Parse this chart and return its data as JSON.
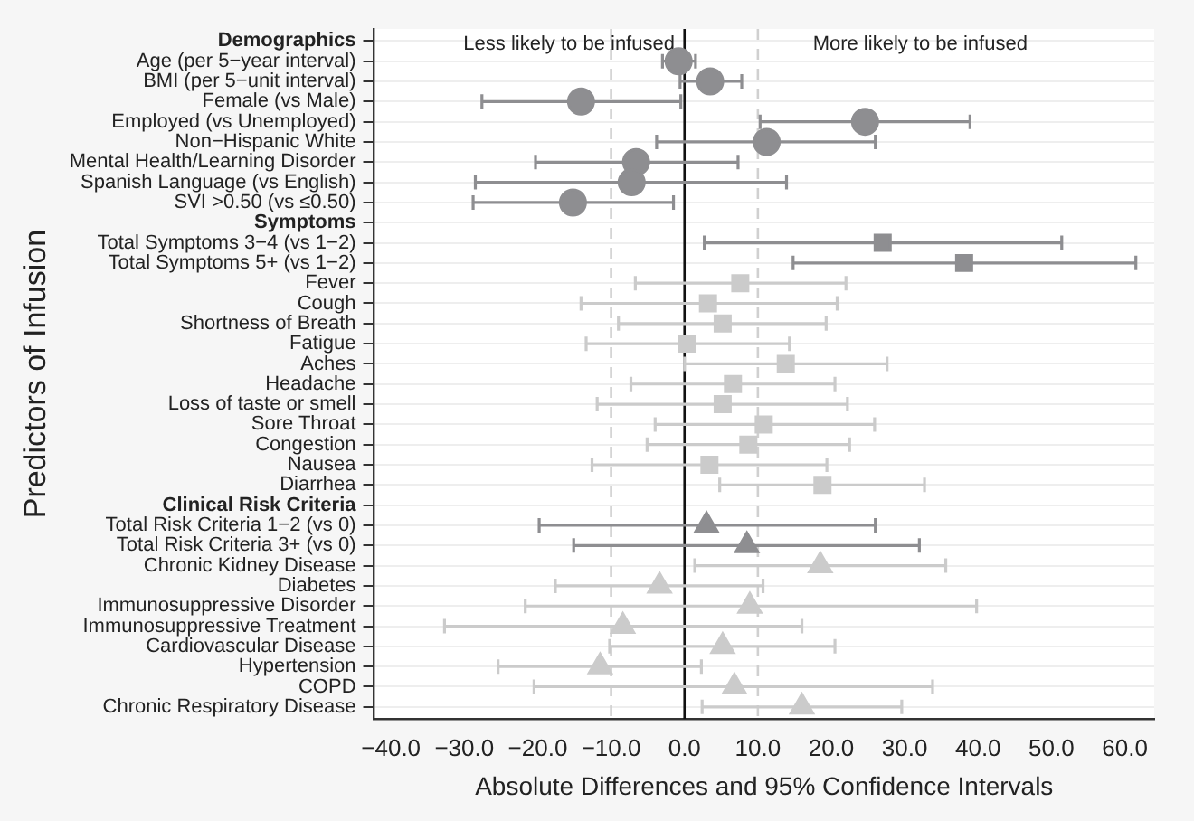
{
  "chart_data": {
    "type": "scatter",
    "orientation": "horizontal",
    "xlabel": "Absolute Differences and 95% Confidence Intervals",
    "ylabel": "Predictors of Infusion",
    "categories": [
      "Demographics",
      "Age (per 5−year interval)",
      "BMI (per 5−unit interval)",
      "Female (vs Male)",
      "Employed (vs Unemployed)",
      "Non−Hispanic White",
      "Mental Health/Learning Disorder",
      "Spanish Language (vs English)",
      "SVI >0.50 (vs ≤0.50)",
      "Symptoms",
      "Total Symptoms 3−4 (vs 1−2)",
      "Total Symptoms 5+ (vs 1−2)",
      "Fever",
      "Cough",
      "Shortness of Breath",
      "Fatigue",
      "Aches",
      "Headache",
      "Loss of taste or smell",
      "Sore Throat",
      "Congestion",
      "Nausea",
      "Diarrhea",
      "Clinical Risk Criteria",
      "Total Risk Criteria 1−2 (vs 0)",
      "Total Risk Criteria 3+ (vs 0)",
      "Chronic Kidney Disease",
      "Diabetes",
      "Immunosuppressive Disorder",
      "Immunosuppressive Treatment",
      "Cardiovascular Disease",
      "Hypertension",
      "COPD",
      "Chronic Respiratory Disease"
    ],
    "series": [
      {
        "color": "#8e8e91",
        "marker": "circle",
        "values": [
          null,
          -0.8,
          3.5,
          -14.1,
          24.6,
          11.2,
          -6.6,
          -7.2,
          -15.2,
          null,
          null,
          null,
          null,
          null,
          null,
          null,
          null,
          null,
          null,
          null,
          null,
          null,
          null,
          null,
          null,
          null,
          null,
          null,
          null,
          null,
          null,
          null,
          null,
          null
        ],
        "errors": [
          null,
          [
            -3.0,
            1.5
          ],
          [
            -0.6,
            7.8
          ],
          [
            -27.6,
            -0.5
          ],
          [
            10.3,
            38.9
          ],
          [
            -3.8,
            26.0
          ],
          [
            -20.3,
            7.3
          ],
          [
            -28.5,
            13.9
          ],
          [
            -28.8,
            -1.5
          ],
          null,
          null,
          null,
          null,
          null,
          null,
          null,
          null,
          null,
          null,
          null,
          null,
          null,
          null,
          null,
          null,
          null,
          null,
          null,
          null,
          null,
          null,
          null,
          null,
          null
        ]
      },
      {
        "color": "#8e8e91",
        "marker": "square",
        "values": [
          null,
          null,
          null,
          null,
          null,
          null,
          null,
          null,
          null,
          null,
          27.0,
          38.1,
          null,
          null,
          null,
          null,
          null,
          null,
          null,
          null,
          null,
          null,
          null,
          null,
          null,
          null,
          null,
          null,
          null,
          null,
          null,
          null,
          null,
          null
        ],
        "errors": [
          null,
          null,
          null,
          null,
          null,
          null,
          null,
          null,
          null,
          null,
          [
            2.7,
            51.4
          ],
          [
            14.8,
            61.5
          ],
          null,
          null,
          null,
          null,
          null,
          null,
          null,
          null,
          null,
          null,
          null,
          null,
          null,
          null,
          null,
          null,
          null,
          null,
          null,
          null,
          null,
          null
        ]
      },
      {
        "color": "#cbcbcb",
        "marker": "square",
        "values": [
          null,
          null,
          null,
          null,
          null,
          null,
          null,
          null,
          null,
          null,
          null,
          null,
          7.6,
          3.2,
          5.2,
          0.4,
          13.8,
          6.6,
          5.2,
          10.8,
          8.7,
          3.4,
          18.8,
          null,
          null,
          null,
          null,
          null,
          null,
          null,
          null,
          null,
          null,
          null
        ],
        "errors": [
          null,
          null,
          null,
          null,
          null,
          null,
          null,
          null,
          null,
          null,
          null,
          null,
          [
            -6.7,
            22.0
          ],
          [
            -14.1,
            20.8
          ],
          [
            -9.0,
            19.3
          ],
          [
            -13.4,
            14.3
          ],
          [
            0.0,
            27.6
          ],
          [
            -7.3,
            20.5
          ],
          [
            -11.9,
            22.2
          ],
          [
            -4.0,
            25.9
          ],
          [
            -5.1,
            22.5
          ],
          [
            -12.6,
            19.4
          ],
          [
            4.8,
            32.7
          ],
          null,
          null,
          null,
          null,
          null,
          null,
          null,
          null,
          null,
          null,
          null
        ]
      },
      {
        "color": "#8e8e91",
        "marker": "triangle",
        "values": [
          null,
          null,
          null,
          null,
          null,
          null,
          null,
          null,
          null,
          null,
          null,
          null,
          null,
          null,
          null,
          null,
          null,
          null,
          null,
          null,
          null,
          null,
          null,
          null,
          3.0,
          8.5,
          null,
          null,
          null,
          null,
          null,
          null,
          null,
          null
        ],
        "errors": [
          null,
          null,
          null,
          null,
          null,
          null,
          null,
          null,
          null,
          null,
          null,
          null,
          null,
          null,
          null,
          null,
          null,
          null,
          null,
          null,
          null,
          null,
          null,
          null,
          [
            -19.8,
            26.0
          ],
          [
            -15.1,
            32.0
          ],
          null,
          null,
          null,
          null,
          null,
          null,
          null,
          null
        ]
      },
      {
        "color": "#cbcbcb",
        "marker": "triangle",
        "values": [
          null,
          null,
          null,
          null,
          null,
          null,
          null,
          null,
          null,
          null,
          null,
          null,
          null,
          null,
          null,
          null,
          null,
          null,
          null,
          null,
          null,
          null,
          null,
          null,
          null,
          null,
          18.5,
          -3.4,
          8.9,
          -8.4,
          5.2,
          -11.5,
          6.8,
          16.0
        ],
        "errors": [
          null,
          null,
          null,
          null,
          null,
          null,
          null,
          null,
          null,
          null,
          null,
          null,
          null,
          null,
          null,
          null,
          null,
          null,
          null,
          null,
          null,
          null,
          null,
          null,
          null,
          null,
          [
            1.4,
            35.6
          ],
          [
            -17.6,
            10.7
          ],
          [
            -21.7,
            39.8
          ],
          [
            -32.7,
            16.0
          ],
          [
            -10.2,
            20.5
          ],
          [
            -25.4,
            2.3
          ],
          [
            -20.5,
            33.8
          ],
          [
            2.4,
            29.6
          ]
        ]
      }
    ],
    "xlim": [
      -42.3,
      64
    ],
    "xticks": [
      {
        "value": -40,
        "label": "−40.0"
      },
      {
        "value": -30,
        "label": "−30.0"
      },
      {
        "value": -20,
        "label": "−20.0"
      },
      {
        "value": -10,
        "label": "−10.0"
      },
      {
        "value": 0,
        "label": "0.0"
      },
      {
        "value": 10,
        "label": "10.0"
      },
      {
        "value": 20,
        "label": "20.0"
      },
      {
        "value": 30,
        "label": "30.0"
      },
      {
        "value": 40,
        "label": "40.0"
      },
      {
        "value": 50,
        "label": "50.0"
      },
      {
        "value": 60,
        "label": "60.0"
      }
    ],
    "ref_lines": [
      {
        "axis": "x",
        "value": 0,
        "color": "#111111",
        "line_style": "solid"
      },
      {
        "axis": "x",
        "value": -10,
        "color": "#d0d0d0",
        "line_style": "dashed"
      },
      {
        "axis": "x",
        "value": 10,
        "color": "#d0d0d0",
        "line_style": "dashed"
      }
    ],
    "annotations": [
      "Less likely to be infused",
      "More likely to be infused"
    ],
    "grid": "y",
    "legend": false
  }
}
